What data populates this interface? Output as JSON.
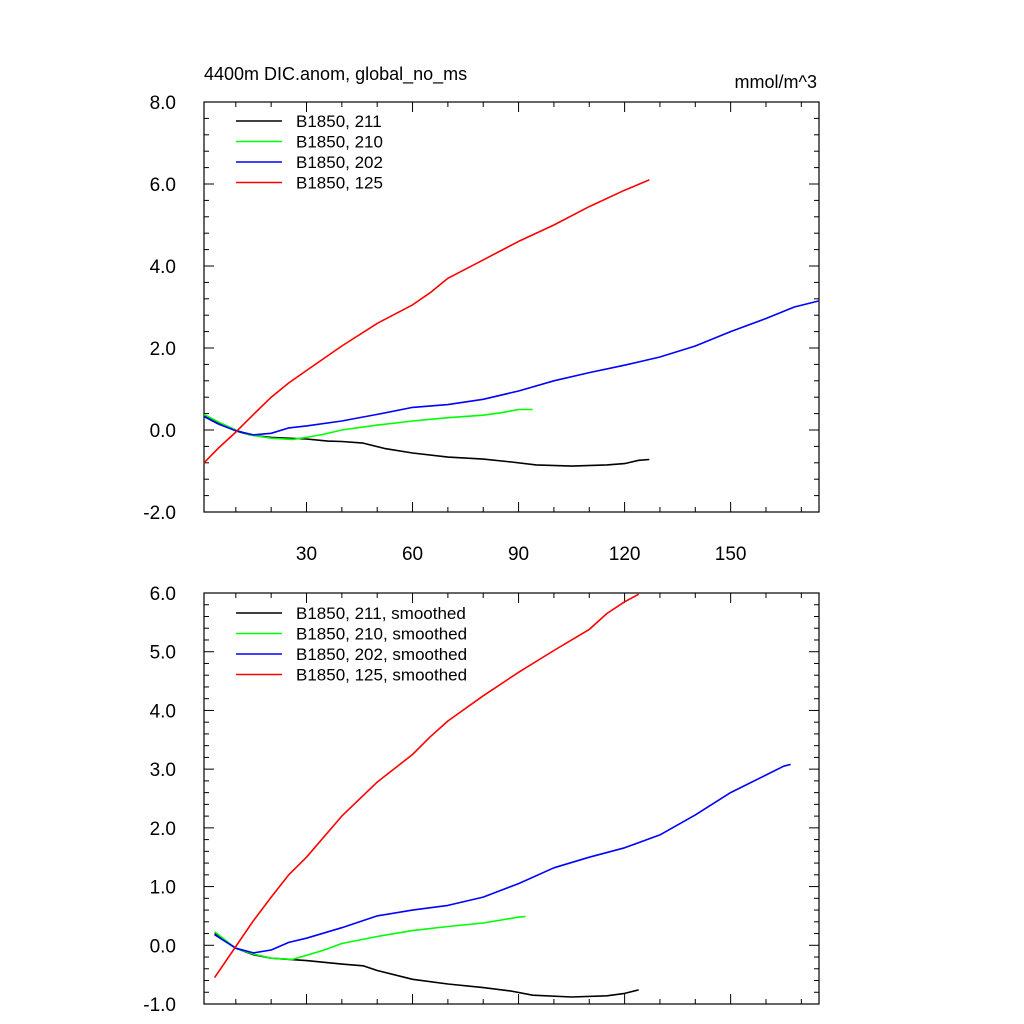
{
  "chart_data": [
    {
      "type": "line",
      "title": "4400m DIC.anom, global_no_ms",
      "units": "mmol/m^3",
      "xlim": [
        1,
        175
      ],
      "ylim": [
        -2.0,
        8.0
      ],
      "xticks": [
        30,
        60,
        90,
        120,
        150
      ],
      "xtick_labels": [
        "30",
        "60",
        "90",
        "120",
        "150"
      ],
      "yticks": [
        -2.0,
        0.0,
        2.0,
        4.0,
        6.0,
        8.0
      ],
      "ytick_labels": [
        "-2.0",
        "0.0",
        "2.0",
        "4.0",
        "6.0",
        "8.0"
      ],
      "grid": false,
      "legend_position": "top-left",
      "series": [
        {
          "name": "B1850, 211",
          "color": "#000000",
          "points": [
            [
              1,
              0.35
            ],
            [
              5,
              0.18
            ],
            [
              10,
              -0.02
            ],
            [
              14,
              -0.12
            ],
            [
              20,
              -0.18
            ],
            [
              30,
              -0.22
            ],
            [
              36,
              -0.27
            ],
            [
              40,
              -0.28
            ],
            [
              46,
              -0.32
            ],
            [
              52,
              -0.45
            ],
            [
              60,
              -0.56
            ],
            [
              70,
              -0.66
            ],
            [
              80,
              -0.71
            ],
            [
              88,
              -0.78
            ],
            [
              95,
              -0.85
            ],
            [
              105,
              -0.88
            ],
            [
              115,
              -0.85
            ],
            [
              120,
              -0.82
            ],
            [
              124,
              -0.74
            ],
            [
              127,
              -0.72
            ]
          ]
        },
        {
          "name": "B1850, 210",
          "color": "#00ff00",
          "points": [
            [
              1,
              0.38
            ],
            [
              5,
              0.2
            ],
            [
              10,
              0.0
            ],
            [
              14,
              -0.12
            ],
            [
              20,
              -0.2
            ],
            [
              26,
              -0.23
            ],
            [
              30,
              -0.18
            ],
            [
              35,
              -0.1
            ],
            [
              40,
              0.0
            ],
            [
              50,
              0.12
            ],
            [
              60,
              0.22
            ],
            [
              70,
              0.3
            ],
            [
              80,
              0.36
            ],
            [
              85,
              0.42
            ],
            [
              90,
              0.5
            ],
            [
              94,
              0.5
            ]
          ]
        },
        {
          "name": "B1850, 202",
          "color": "#0000ff",
          "points": [
            [
              1,
              0.33
            ],
            [
              5,
              0.15
            ],
            [
              10,
              -0.02
            ],
            [
              15,
              -0.12
            ],
            [
              20,
              -0.08
            ],
            [
              25,
              0.05
            ],
            [
              30,
              0.1
            ],
            [
              40,
              0.22
            ],
            [
              50,
              0.38
            ],
            [
              60,
              0.55
            ],
            [
              70,
              0.62
            ],
            [
              80,
              0.75
            ],
            [
              90,
              0.95
            ],
            [
              100,
              1.2
            ],
            [
              110,
              1.4
            ],
            [
              120,
              1.58
            ],
            [
              130,
              1.78
            ],
            [
              140,
              2.05
            ],
            [
              150,
              2.4
            ],
            [
              160,
              2.72
            ],
            [
              168,
              3.0
            ],
            [
              175,
              3.15
            ]
          ]
        },
        {
          "name": "B1850, 125",
          "color": "#ff0000",
          "points": [
            [
              1,
              -0.8
            ],
            [
              5,
              -0.45
            ],
            [
              10,
              -0.05
            ],
            [
              15,
              0.38
            ],
            [
              20,
              0.8
            ],
            [
              25,
              1.15
            ],
            [
              30,
              1.45
            ],
            [
              40,
              2.05
            ],
            [
              50,
              2.6
            ],
            [
              60,
              3.05
            ],
            [
              65,
              3.35
            ],
            [
              70,
              3.7
            ],
            [
              80,
              4.15
            ],
            [
              90,
              4.6
            ],
            [
              100,
              5.0
            ],
            [
              110,
              5.45
            ],
            [
              120,
              5.85
            ],
            [
              127,
              6.1
            ]
          ]
        }
      ]
    },
    {
      "type": "line",
      "xlim": [
        1,
        175
      ],
      "ylim": [
        -1.0,
        6.0
      ],
      "xticks": [
        30,
        60,
        90,
        120,
        150
      ],
      "yticks": [
        -1.0,
        0.0,
        1.0,
        2.0,
        3.0,
        4.0,
        5.0,
        6.0
      ],
      "ytick_labels": [
        "-1.0",
        "0.0",
        "1.0",
        "2.0",
        "3.0",
        "4.0",
        "5.0",
        "6.0"
      ],
      "grid": false,
      "legend_position": "top-left",
      "series": [
        {
          "name": "B1850, 211, smoothed",
          "color": "#000000",
          "points": [
            [
              4,
              0.2
            ],
            [
              10,
              -0.05
            ],
            [
              15,
              -0.16
            ],
            [
              20,
              -0.22
            ],
            [
              30,
              -0.26
            ],
            [
              40,
              -0.32
            ],
            [
              46,
              -0.35
            ],
            [
              50,
              -0.43
            ],
            [
              60,
              -0.58
            ],
            [
              70,
              -0.66
            ],
            [
              80,
              -0.72
            ],
            [
              88,
              -0.78
            ],
            [
              94,
              -0.85
            ],
            [
              105,
              -0.88
            ],
            [
              115,
              -0.86
            ],
            [
              120,
              -0.82
            ],
            [
              124,
              -0.76
            ]
          ]
        },
        {
          "name": "B1850, 210, smoothed",
          "color": "#00ff00",
          "points": [
            [
              4,
              0.23
            ],
            [
              10,
              -0.05
            ],
            [
              15,
              -0.15
            ],
            [
              20,
              -0.22
            ],
            [
              26,
              -0.24
            ],
            [
              30,
              -0.17
            ],
            [
              35,
              -0.08
            ],
            [
              40,
              0.03
            ],
            [
              50,
              0.15
            ],
            [
              60,
              0.25
            ],
            [
              70,
              0.32
            ],
            [
              80,
              0.38
            ],
            [
              86,
              0.44
            ],
            [
              90,
              0.48
            ],
            [
              92,
              0.49
            ]
          ]
        },
        {
          "name": "B1850, 202, smoothed",
          "color": "#0000ff",
          "points": [
            [
              4,
              0.18
            ],
            [
              10,
              -0.05
            ],
            [
              15,
              -0.13
            ],
            [
              20,
              -0.08
            ],
            [
              25,
              0.05
            ],
            [
              30,
              0.12
            ],
            [
              40,
              0.3
            ],
            [
              50,
              0.5
            ],
            [
              60,
              0.6
            ],
            [
              70,
              0.68
            ],
            [
              80,
              0.82
            ],
            [
              90,
              1.05
            ],
            [
              100,
              1.32
            ],
            [
              110,
              1.5
            ],
            [
              120,
              1.66
            ],
            [
              130,
              1.88
            ],
            [
              140,
              2.22
            ],
            [
              150,
              2.6
            ],
            [
              160,
              2.9
            ],
            [
              165,
              3.05
            ],
            [
              167,
              3.08
            ]
          ]
        },
        {
          "name": "B1850, 125, smoothed",
          "color": "#ff0000",
          "points": [
            [
              4,
              -0.55
            ],
            [
              10,
              -0.02
            ],
            [
              15,
              0.42
            ],
            [
              20,
              0.82
            ],
            [
              25,
              1.2
            ],
            [
              30,
              1.5
            ],
            [
              40,
              2.2
            ],
            [
              50,
              2.78
            ],
            [
              60,
              3.25
            ],
            [
              65,
              3.55
            ],
            [
              70,
              3.82
            ],
            [
              80,
              4.25
            ],
            [
              90,
              4.65
            ],
            [
              100,
              5.02
            ],
            [
              110,
              5.38
            ],
            [
              115,
              5.65
            ],
            [
              120,
              5.85
            ],
            [
              124,
              5.98
            ]
          ]
        }
      ]
    }
  ]
}
